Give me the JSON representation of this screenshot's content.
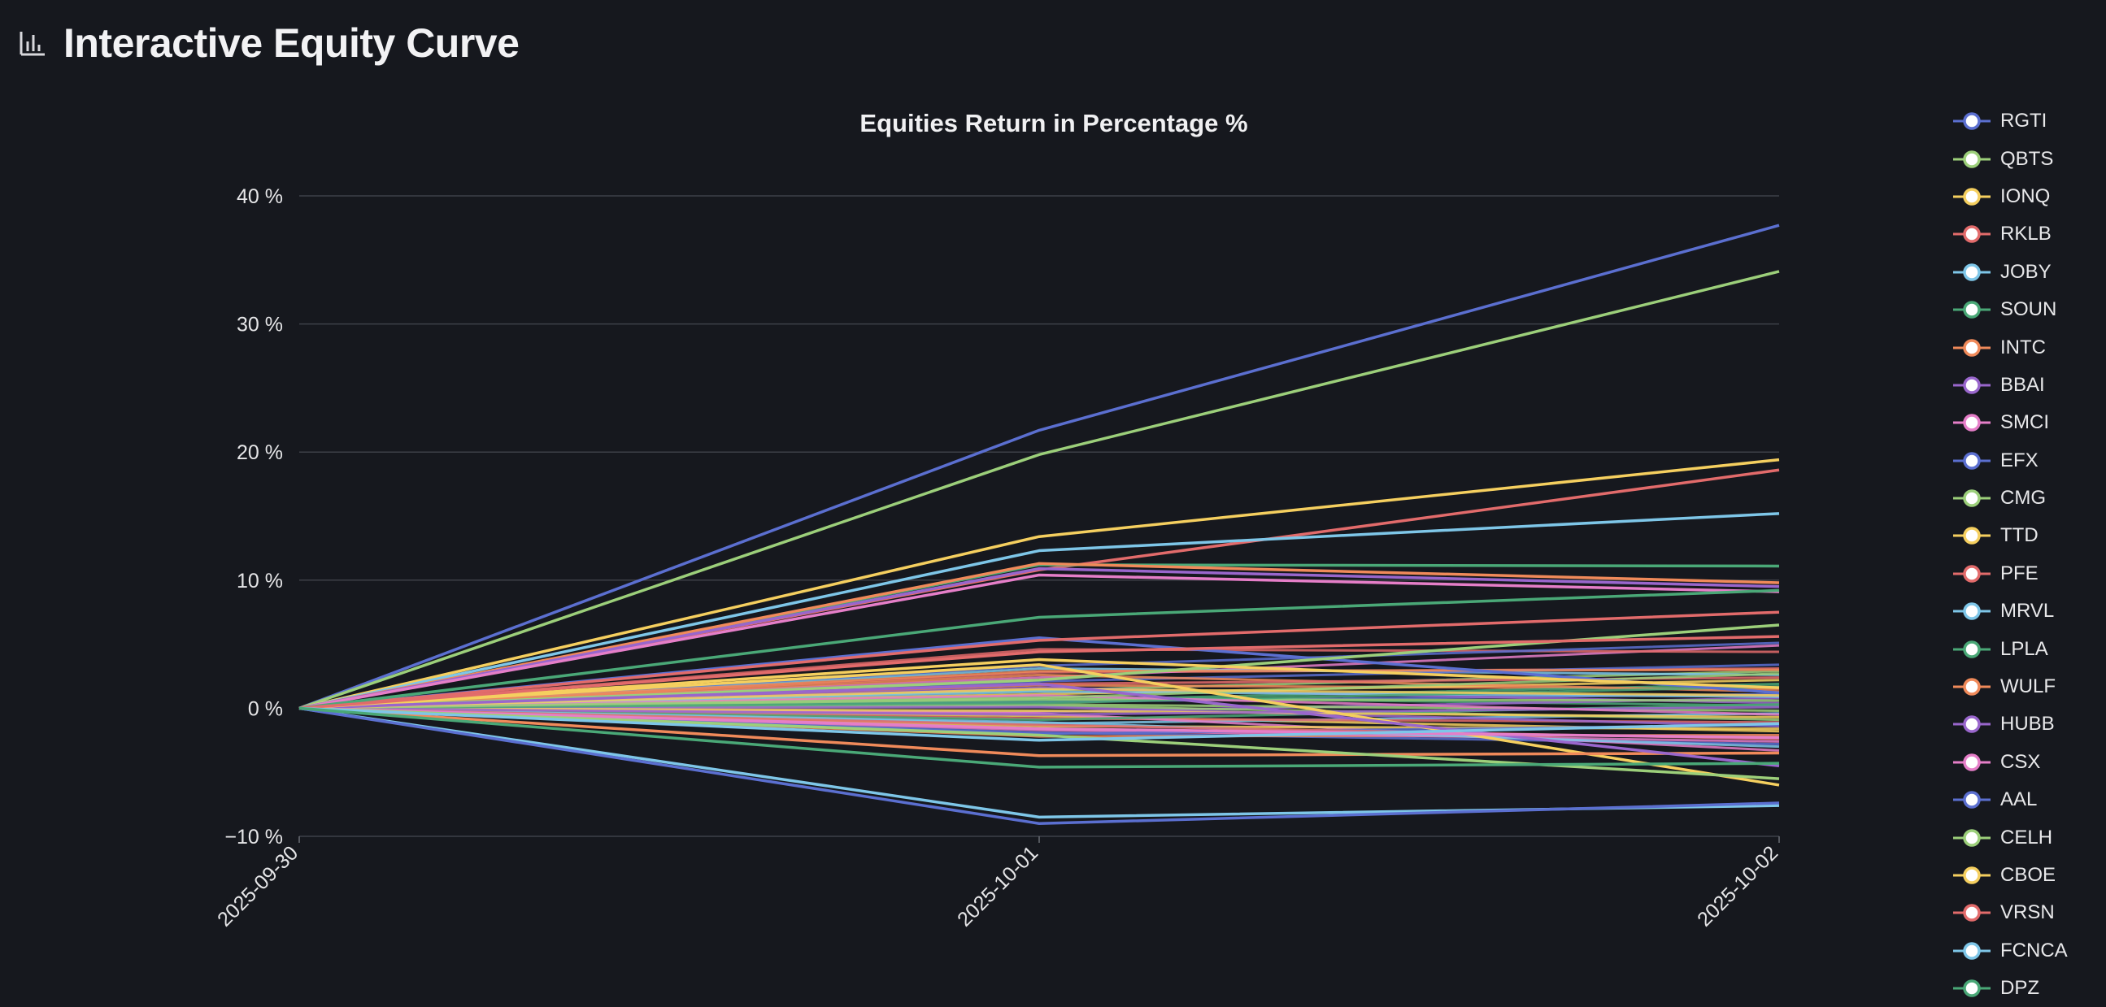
{
  "page": {
    "title": "Interactive Equity Curve",
    "icon": "bar-chart-icon"
  },
  "chart_data": {
    "type": "line",
    "title": "Equities Return in Percentage %",
    "xlabel": "",
    "ylabel": "",
    "x": [
      "2025-09-30",
      "2025-10-01",
      "2025-10-02"
    ],
    "ylim": [
      -10,
      40
    ],
    "yticks": [
      40,
      30,
      20,
      10,
      0,
      -10
    ],
    "ytick_labels": [
      "40 %",
      "30 %",
      "20 %",
      "10 %",
      "0 %",
      "−10 %"
    ],
    "grid": true,
    "legend_position": "right",
    "series": [
      {
        "name": "RGTI",
        "color": "#5b6fd0",
        "values": [
          0,
          21.7,
          37.7
        ]
      },
      {
        "name": "QBTS",
        "color": "#9ccf7a",
        "values": [
          0,
          19.8,
          34.1
        ]
      },
      {
        "name": "IONQ",
        "color": "#f5cf5f",
        "values": [
          0,
          13.4,
          19.4
        ]
      },
      {
        "name": "RKLB",
        "color": "#e26b6b",
        "values": [
          0,
          10.8,
          18.6
        ]
      },
      {
        "name": "JOBY",
        "color": "#7ec6e8",
        "values": [
          0,
          12.3,
          15.2
        ]
      },
      {
        "name": "SOUN",
        "color": "#4aa877",
        "values": [
          0,
          11.2,
          11.1
        ]
      },
      {
        "name": "INTC",
        "color": "#f08a5a",
        "values": [
          0,
          11.3,
          9.8
        ]
      },
      {
        "name": "BBAI",
        "color": "#9966cc",
        "values": [
          0,
          10.9,
          9.5
        ]
      },
      {
        "name": "SMCI",
        "color": "#e57ec8",
        "values": [
          0,
          10.4,
          9.1
        ]
      },
      {
        "name": "EFX",
        "color": "#5b6fd0",
        "values": [
          0,
          5.5,
          1.2
        ]
      },
      {
        "name": "CMG",
        "color": "#9ccf7a",
        "values": [
          0,
          2.2,
          6.5
        ]
      },
      {
        "name": "TTD",
        "color": "#f5cf5f",
        "values": [
          0,
          3.4,
          -6.0
        ]
      },
      {
        "name": "PFE",
        "color": "#e26b6b",
        "values": [
          0,
          5.3,
          7.5
        ]
      },
      {
        "name": "MRVL",
        "color": "#7ec6e8",
        "values": [
          0,
          -8.5,
          -7.6
        ]
      },
      {
        "name": "LPLA",
        "color": "#4aa877",
        "values": [
          0,
          7.1,
          9.2
        ]
      },
      {
        "name": "WULF",
        "color": "#f08a5a",
        "values": [
          0,
          -3.7,
          -3.5
        ]
      },
      {
        "name": "HUBB",
        "color": "#9966cc",
        "values": [
          0,
          1.9,
          -4.5
        ]
      },
      {
        "name": "CSX",
        "color": "#e57ec8",
        "values": [
          0,
          -1.6,
          -2.3
        ]
      },
      {
        "name": "AAL",
        "color": "#5b6fd0",
        "values": [
          0,
          -9.0,
          -7.4
        ]
      },
      {
        "name": "CELH",
        "color": "#9ccf7a",
        "values": [
          0,
          -2.1,
          -5.5
        ]
      },
      {
        "name": "CBOE",
        "color": "#f5cf5f",
        "values": [
          0,
          3.8,
          1.6
        ]
      },
      {
        "name": "VRSN",
        "color": "#e26b6b",
        "values": [
          0,
          4.4,
          5.6
        ]
      },
      {
        "name": "FCNCA",
        "color": "#7ec6e8",
        "values": [
          0,
          -2.5,
          -1.2
        ]
      },
      {
        "name": "DPZ",
        "color": "#4aa877",
        "values": [
          0,
          -4.6,
          -4.3
        ]
      }
    ]
  },
  "background_series": {
    "colors": [
      "#5b6fd0",
      "#9ccf7a",
      "#f5cf5f",
      "#e26b6b",
      "#7ec6e8",
      "#4aa877",
      "#f08a5a",
      "#9966cc",
      "#e57ec8"
    ],
    "values": [
      [
        0,
        0.5,
        1.1
      ],
      [
        0,
        1.4,
        2.9
      ],
      [
        0,
        -0.6,
        -1.8
      ],
      [
        0,
        2.8,
        3.1
      ],
      [
        0,
        -1.2,
        -0.4
      ],
      [
        0,
        0.9,
        0.2
      ],
      [
        0,
        1.8,
        1.5
      ],
      [
        0,
        -0.3,
        0.8
      ],
      [
        0,
        2.4,
        4.9
      ],
      [
        0,
        -1.9,
        -2.8
      ],
      [
        0,
        0.2,
        -0.9
      ],
      [
        0,
        1.1,
        2.2
      ],
      [
        0,
        -0.8,
        -1.1
      ],
      [
        0,
        3.1,
        2.6
      ],
      [
        0,
        0.6,
        1.9
      ],
      [
        0,
        -2.2,
        -2.1
      ],
      [
        0,
        1.6,
        0.4
      ],
      [
        0,
        -0.4,
        -3.3
      ],
      [
        0,
        2.1,
        3.4
      ],
      [
        0,
        0.3,
        -0.2
      ],
      [
        0,
        -1.4,
        -1.6
      ],
      [
        0,
        4.6,
        4.4
      ],
      [
        0,
        1.3,
        0.9
      ],
      [
        0,
        -0.9,
        0.3
      ],
      [
        0,
        2.6,
        1.3
      ],
      [
        0,
        0.1,
        -1.4
      ],
      [
        0,
        -1.7,
        -2.6
      ],
      [
        0,
        3.3,
        5.1
      ],
      [
        0,
        0.7,
        0.6
      ],
      [
        0,
        -0.2,
        -0.7
      ],
      [
        0,
        1.9,
        2.4
      ],
      [
        0,
        -1.1,
        -3.0
      ],
      [
        0,
        0.4,
        1.7
      ],
      [
        0,
        2.9,
        3.0
      ],
      [
        0,
        -0.5,
        0.1
      ],
      [
        0,
        1.0,
        -0.5
      ],
      [
        0,
        -2.0,
        -1.3
      ],
      [
        0,
        0.8,
        2.7
      ],
      [
        0,
        1.5,
        1.0
      ],
      [
        0,
        -1.3,
        -2.4
      ]
    ]
  }
}
